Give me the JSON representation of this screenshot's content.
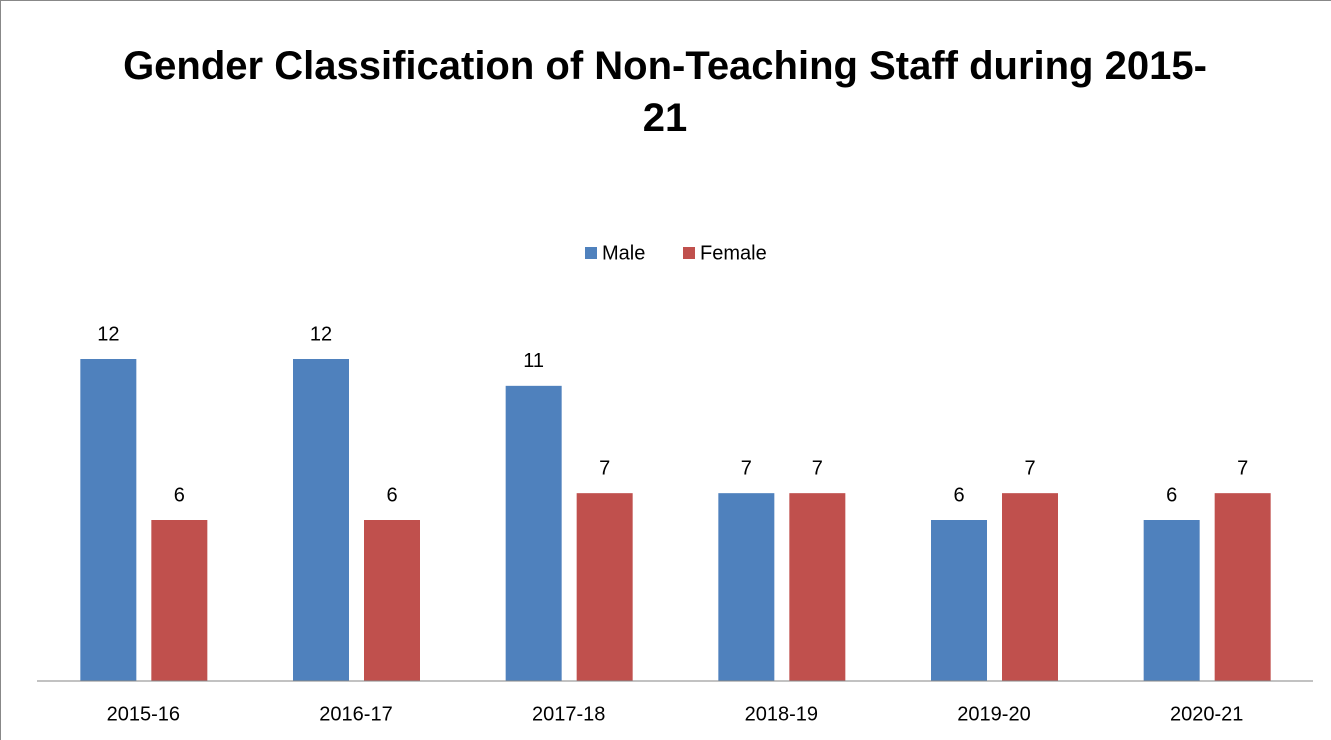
{
  "chart_data": {
    "type": "bar",
    "title": "Gender Classification of Non-Teaching Staff during 2015-21",
    "categories": [
      "2015-16",
      "2016-17",
      "2017-18",
      "2018-19",
      "2019-20",
      "2020-21"
    ],
    "series": [
      {
        "name": "Male",
        "color": "#4f81bd",
        "values": [
          12,
          12,
          11,
          7,
          6,
          6
        ]
      },
      {
        "name": "Female",
        "color": "#c0504d",
        "values": [
          6,
          6,
          7,
          7,
          7,
          7
        ]
      }
    ],
    "legend": "top"
  }
}
